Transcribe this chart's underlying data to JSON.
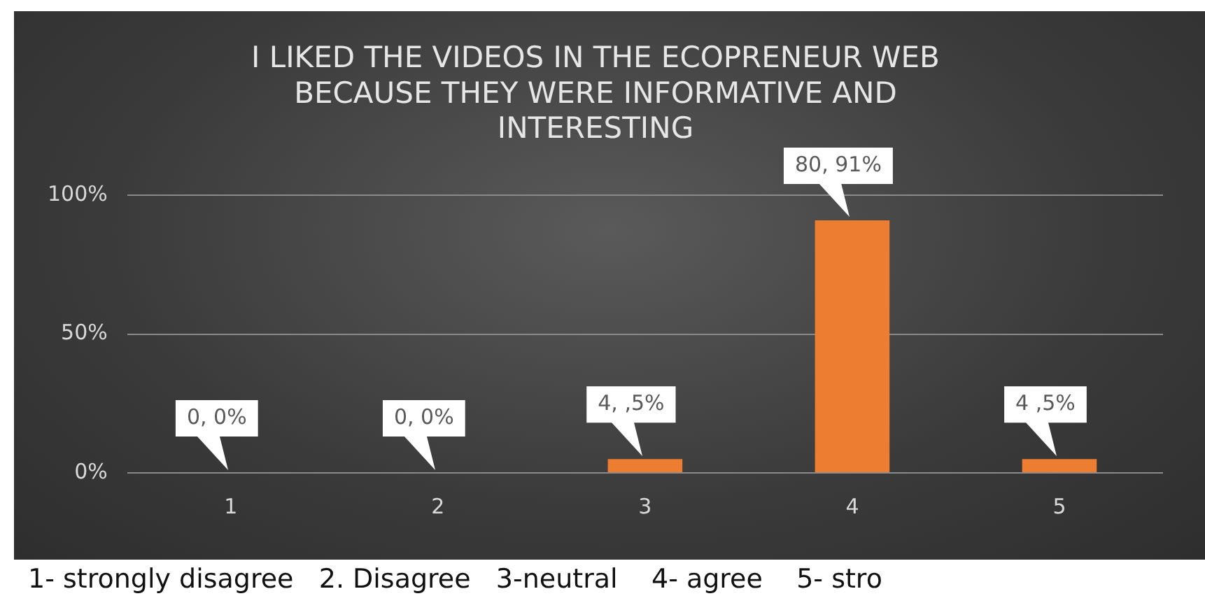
{
  "chart_data": {
    "type": "bar",
    "title": "I LIKED THE VIDEOS IN THE ECOPRENEUR WEB BECAUSE THEY WERE INFORMATIVE AND INTERESTING",
    "categories": [
      "1",
      "2",
      "3",
      "4",
      "5"
    ],
    "values": [
      0,
      0,
      5,
      91,
      5
    ],
    "value_labels": [
      "0, 0%",
      "0, 0%",
      "4, ,5%",
      "80, 91%",
      "4 ,5%"
    ],
    "color": "#ed7d31",
    "ylim": [
      0,
      100
    ],
    "yticks": [
      {
        "value": 0,
        "label": "0%"
      },
      {
        "value": 50,
        "label": "50%"
      },
      {
        "value": 100,
        "label": "100%"
      }
    ],
    "grid": "y",
    "legend": false,
    "annotations": [
      "1- strongly disagree   2. Disagree   3-neutral    4- agree    5- stro"
    ]
  }
}
